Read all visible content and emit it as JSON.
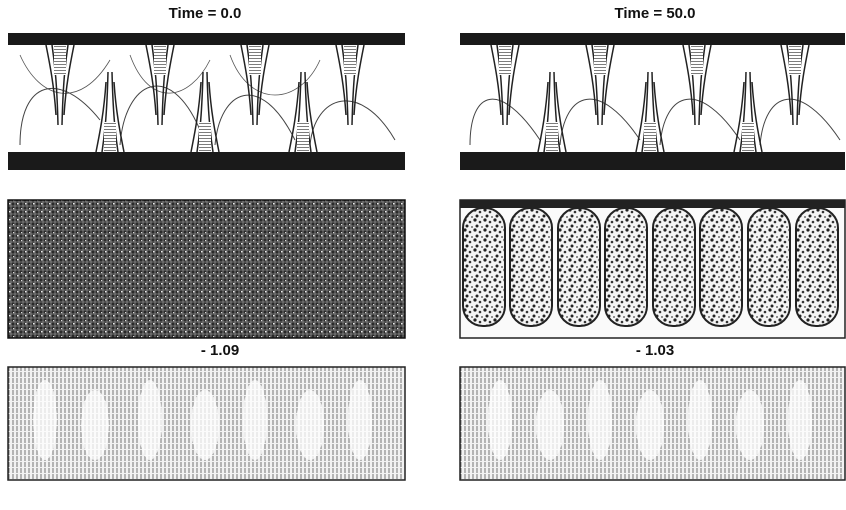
{
  "panels": [
    {
      "title": "Time = 0.0",
      "label": "- 1.09"
    },
    {
      "title": "Time = 50.0",
      "label": "- 1.03"
    }
  ]
}
